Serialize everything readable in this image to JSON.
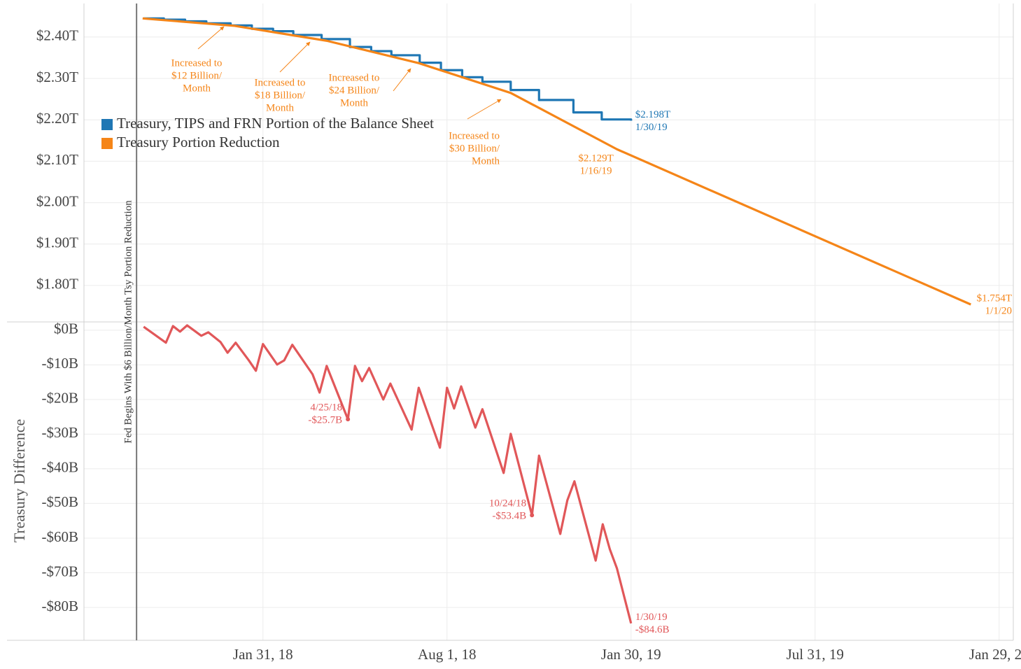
{
  "chart_data": [
    {
      "type": "line",
      "xlim": [
        "2017-08-07",
        "2020-02-12"
      ],
      "ylim": [
        1.712,
        2.481
      ],
      "yticks": [
        {
          "value": 1.8,
          "label": "$1.80T"
        },
        {
          "value": 1.9,
          "label": "$1.90T"
        },
        {
          "value": 2.0,
          "label": "$2.00T"
        },
        {
          "value": 2.1,
          "label": "$2.10T"
        },
        {
          "value": 2.2,
          "label": "$2.20T"
        },
        {
          "value": 2.3,
          "label": "$2.30T"
        },
        {
          "value": 2.4,
          "label": "$2.40T"
        }
      ],
      "grid": true,
      "legend": "upper-left",
      "reference_line": {
        "x": "2017-09-28",
        "label": "Fed Begins With $6 Billion/Month Tsy Portion Reduction"
      },
      "series": [
        {
          "name": "Treasury, TIPS and FRN Portion of the Balance Sheet",
          "color": "#1f77b4",
          "step": true,
          "x": [
            "2017-10-05",
            "2017-10-25",
            "2017-11-15",
            "2017-12-06",
            "2017-12-30",
            "2018-01-20",
            "2018-02-10",
            "2018-03-02",
            "2018-03-30",
            "2018-04-27",
            "2018-05-18",
            "2018-06-07",
            "2018-07-05",
            "2018-07-26",
            "2018-08-16",
            "2018-09-05",
            "2018-10-03",
            "2018-10-31",
            "2018-12-04",
            "2019-01-01",
            "2019-01-30"
          ],
          "values": [
            2.445,
            2.442,
            2.438,
            2.433,
            2.428,
            2.42,
            2.414,
            2.405,
            2.395,
            2.376,
            2.366,
            2.356,
            2.338,
            2.32,
            2.303,
            2.292,
            2.272,
            2.248,
            2.218,
            2.201,
            2.198
          ]
        },
        {
          "name": "Treasury Portion Reduction",
          "color": "#f58518",
          "step": false,
          "x": [
            "2017-10-04",
            "2018-01-03",
            "2018-04-04",
            "2018-07-04",
            "2018-10-03",
            "2019-01-16",
            "2020-01-01"
          ],
          "values": [
            2.445,
            2.427,
            2.391,
            2.337,
            2.265,
            2.129,
            1.754
          ]
        }
      ],
      "point_labels": [
        {
          "series": 0,
          "x": "2019-01-30",
          "y": 2.198,
          "label": "$2.198T",
          "date_label": "1/30/19"
        },
        {
          "series": 1,
          "x": "2019-01-16",
          "y": 2.129,
          "label": "$2.129T",
          "date_label": "1/16/19"
        },
        {
          "series": 1,
          "x": "2020-01-01",
          "y": 1.754,
          "label": "$1.754T",
          "date_label": "1/1/20"
        }
      ],
      "annotations": [
        {
          "lines": [
            "Increased to",
            "$12 Billion/",
            "Month"
          ]
        },
        {
          "lines": [
            "Increased to",
            "$18 Billion/",
            "Month"
          ]
        },
        {
          "lines": [
            "Increased to",
            "$24 Billion/",
            "Month"
          ]
        },
        {
          "lines": [
            "Increased to",
            "$30 Billion/",
            "Month"
          ]
        }
      ]
    },
    {
      "type": "line",
      "y_label": "Treasury Difference",
      "xlim": [
        "2017-08-07",
        "2020-02-12"
      ],
      "xticks": [
        {
          "value": "2018-01-31",
          "label": "Jan 31, 18"
        },
        {
          "value": "2018-08-01",
          "label": "Aug 1, 18"
        },
        {
          "value": "2019-01-30",
          "label": "Jan 30, 19"
        },
        {
          "value": "2019-07-31",
          "label": "Jul 31, 19"
        },
        {
          "value": "2020-01-29",
          "label": "Jan 29, 20"
        }
      ],
      "ylim": [
        -89.5,
        2.4
      ],
      "yticks": [
        {
          "value": -80,
          "label": "-$80B"
        },
        {
          "value": -70,
          "label": "-$70B"
        },
        {
          "value": -60,
          "label": "-$60B"
        },
        {
          "value": -50,
          "label": "-$50B"
        },
        {
          "value": -40,
          "label": "-$40B"
        },
        {
          "value": -30,
          "label": "-$30B"
        },
        {
          "value": -20,
          "label": "-$20B"
        },
        {
          "value": -10,
          "label": "-$10B"
        },
        {
          "value": 0,
          "label": "$0B"
        }
      ],
      "grid": true,
      "series": [
        {
          "color": "#e15759",
          "step": false,
          "x": [
            "2017-10-05",
            "2017-10-27",
            "2017-11-03",
            "2017-11-10",
            "2017-11-17",
            "2017-12-01",
            "2017-12-08",
            "2017-12-20",
            "2017-12-27",
            "2018-01-04",
            "2018-01-17",
            "2018-01-24",
            "2018-01-31",
            "2018-02-14",
            "2018-02-21",
            "2018-03-01",
            "2018-03-21",
            "2018-03-28",
            "2018-04-04",
            "2018-04-25",
            "2018-05-02",
            "2018-05-09",
            "2018-05-16",
            "2018-05-30",
            "2018-06-06",
            "2018-06-27",
            "2018-07-04",
            "2018-07-25",
            "2018-08-01",
            "2018-08-08",
            "2018-08-15",
            "2018-08-29",
            "2018-09-05",
            "2018-09-26",
            "2018-10-03",
            "2018-10-24",
            "2018-10-31",
            "2018-11-21",
            "2018-11-28",
            "2018-12-05",
            "2018-12-26",
            "2019-01-02",
            "2019-01-09",
            "2019-01-16",
            "2019-01-30"
          ],
          "values": [
            1.0,
            -3.6,
            1.2,
            -0.4,
            1.4,
            -1.6,
            -0.6,
            -3.4,
            -6.5,
            -3.6,
            -8.7,
            -11.7,
            -4.0,
            -9.9,
            -8.7,
            -4.2,
            -12.7,
            -18.0,
            -10.3,
            -25.7,
            -10.3,
            -14.7,
            -10.9,
            -20.0,
            -15.4,
            -28.7,
            -16.6,
            -33.9,
            -16.6,
            -22.6,
            -16.2,
            -28.1,
            -22.8,
            -41.2,
            -29.9,
            -53.4,
            -36.2,
            -58.8,
            -49.1,
            -43.6,
            -66.5,
            -56.0,
            -63.2,
            -68.7,
            -84.6
          ]
        }
      ],
      "point_labels": [
        {
          "series": 0,
          "x": "2018-04-25",
          "y": -25.7,
          "label": "-$25.7B",
          "date_label": "4/25/18"
        },
        {
          "series": 0,
          "x": "2018-10-24",
          "y": -53.4,
          "label": "-$53.4B",
          "date_label": "10/24/18"
        },
        {
          "series": 0,
          "x": "2019-01-30",
          "y": -84.6,
          "label": "-$84.6B",
          "date_label": "1/30/19"
        }
      ]
    }
  ]
}
